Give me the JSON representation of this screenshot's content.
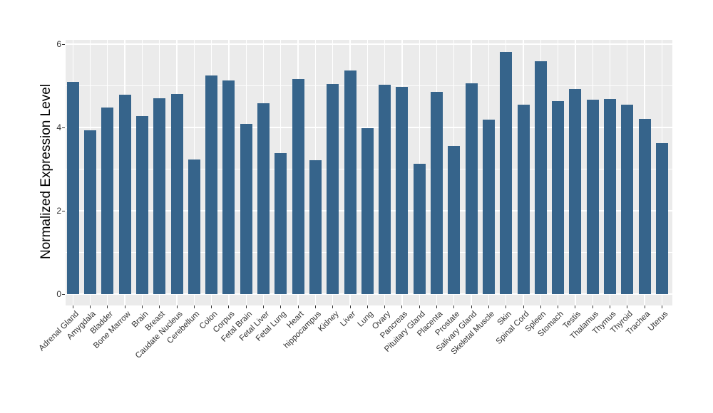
{
  "chart_data": {
    "type": "bar",
    "title": "",
    "xlabel": "",
    "ylabel": "Normalized Expression Level",
    "categories": [
      "Adrenal Gland",
      "Amygdala",
      "Bladder",
      "Bone Marrow",
      "Brain",
      "Breast",
      "Caudate Nucleus",
      "Cerebellum",
      "Colon",
      "Corpus",
      "Fetal Brain",
      "Fetal Liver",
      "Fetal Lung",
      "Heart",
      "hippocampus",
      "Kidney",
      "Liver",
      "Lung",
      "Ovary",
      "Pancreas",
      "Pituitary Gland",
      "Placenta",
      "Prostate",
      "Salivary Gland",
      "Skeletal Muscle",
      "Skin",
      "Spinal Cord",
      "Spleen",
      "Stomach",
      "Testis",
      "Thalamus",
      "Thymus",
      "Thyroid",
      "Trachea",
      "Uterus"
    ],
    "values": [
      5.1,
      3.93,
      4.48,
      4.79,
      4.27,
      4.7,
      4.8,
      3.23,
      5.24,
      5.12,
      4.08,
      4.58,
      3.39,
      5.16,
      3.22,
      5.05,
      5.36,
      3.99,
      5.02,
      4.97,
      3.12,
      4.86,
      3.55,
      5.06,
      4.19,
      5.81,
      4.54,
      5.59,
      4.63,
      4.93,
      4.67,
      4.68,
      4.54,
      4.2,
      3.63
    ],
    "yticks": [
      "0",
      "2",
      "4",
      "6"
    ],
    "ytick_values": [
      0,
      2,
      4,
      6
    ],
    "ytick_minor_values": [
      1,
      3,
      5
    ],
    "ylim": [
      -0.29,
      6.12
    ],
    "grid": {
      "horizontal_major": true,
      "horizontal_minor": true,
      "vertical_major_per_category": true
    },
    "legend": "none",
    "colors": {
      "bar": "#36648B",
      "panel_background": "#EBEBEB",
      "gridline": "#FFFFFF",
      "tick_mark": "#333333",
      "axis_text": "#333333",
      "axis_title": "#000000",
      "page_background": "#FFFFFF"
    }
  }
}
